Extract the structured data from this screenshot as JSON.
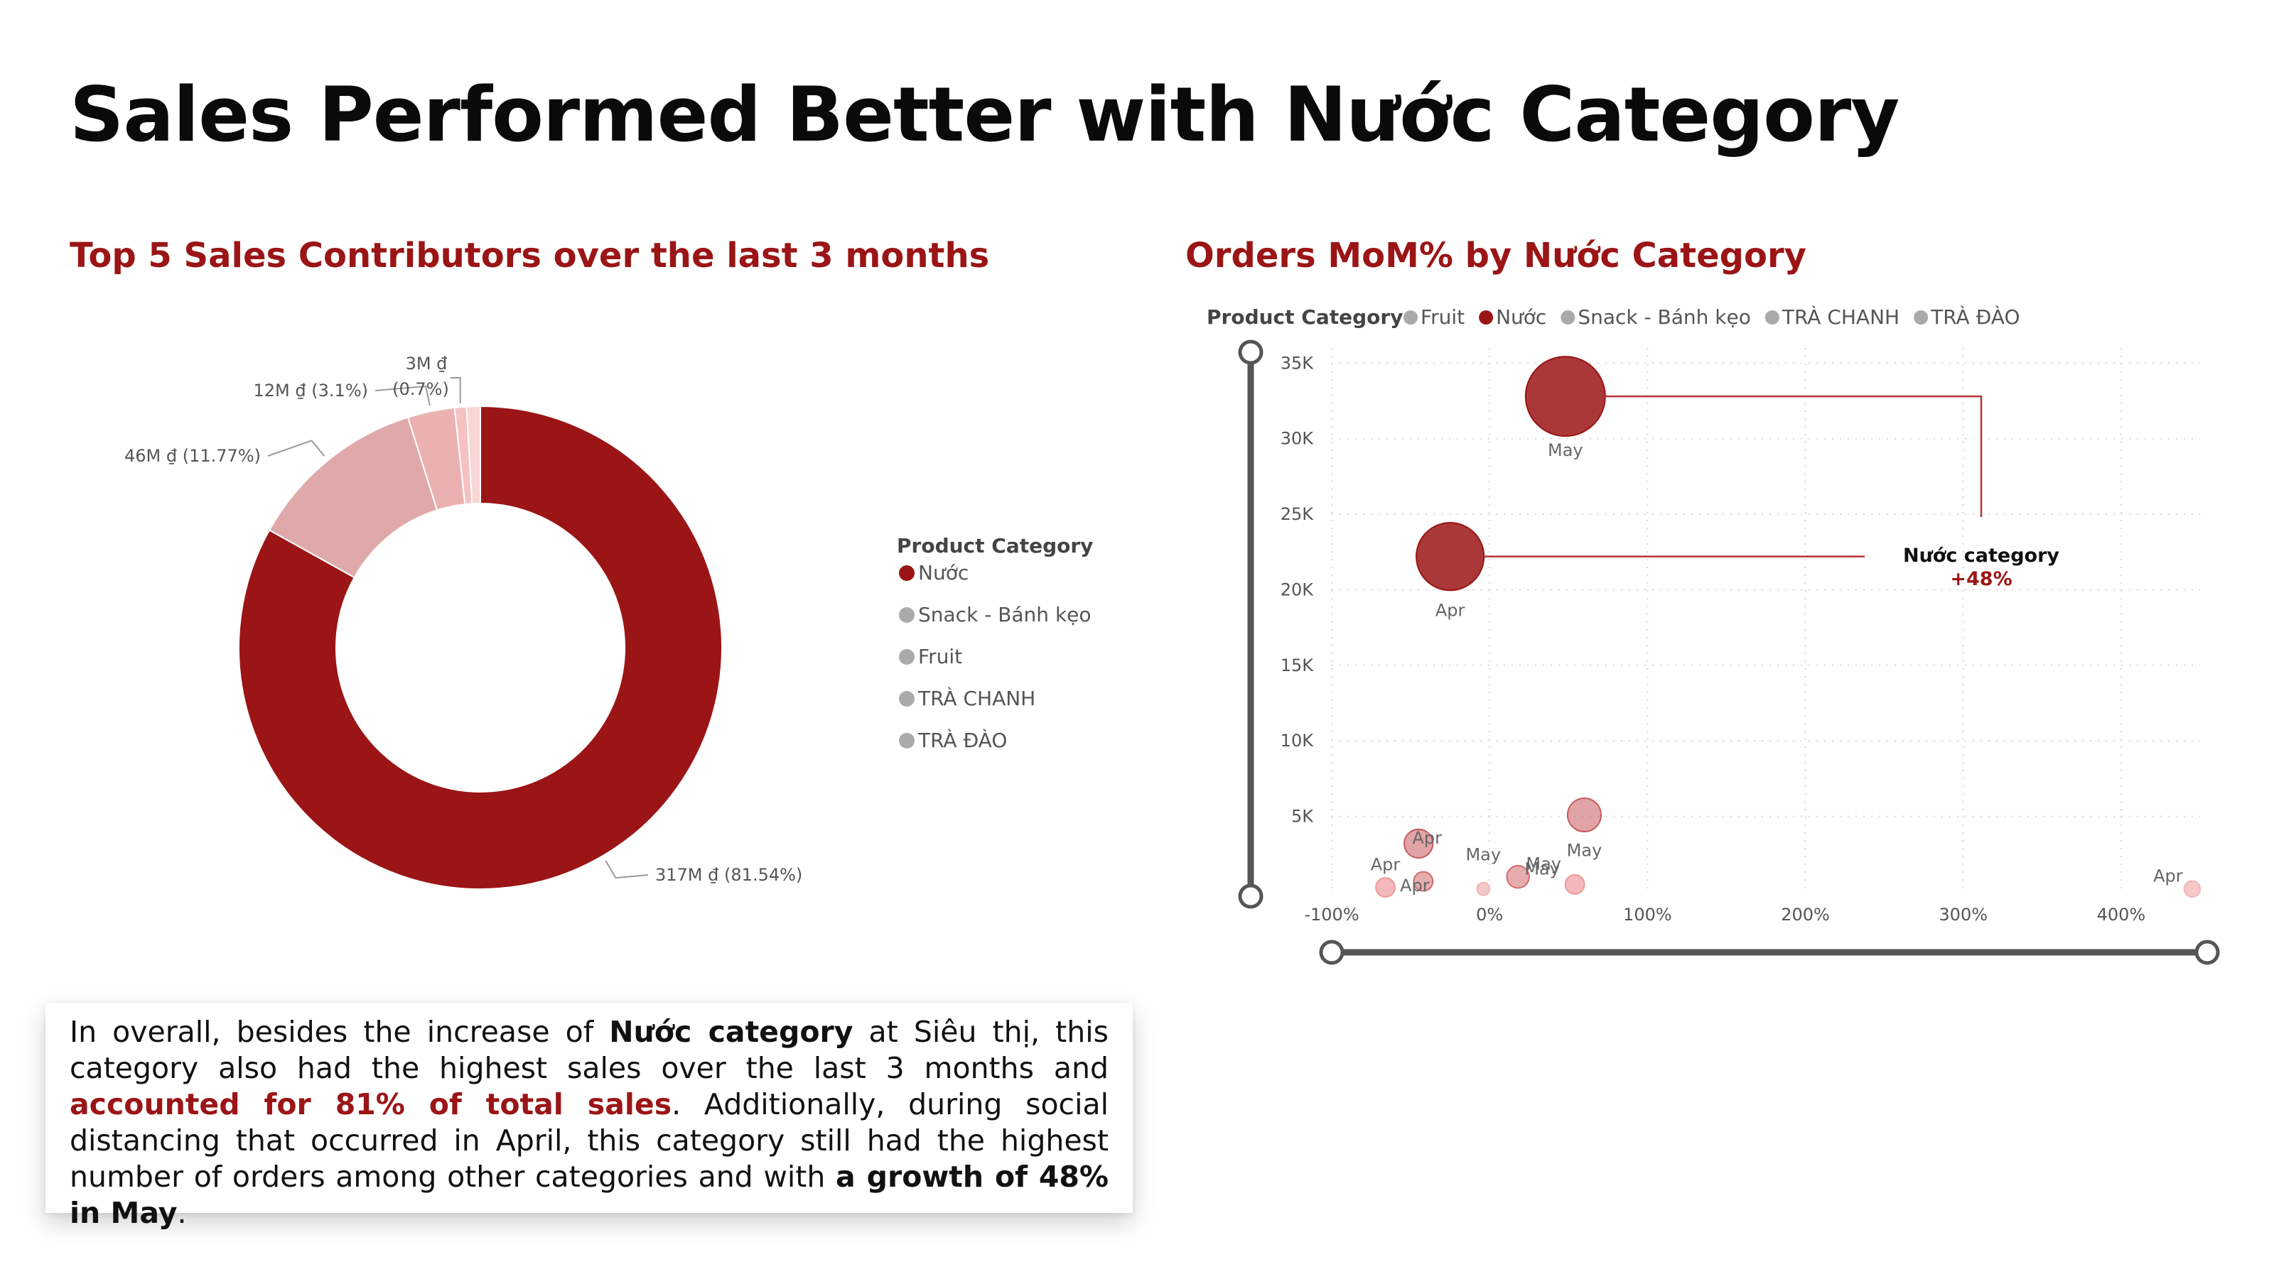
{
  "title": "Sales Performed Better with Nước Category",
  "left_title": "Top 5 Sales Contributors over the last 3 months",
  "right_title": "Orders MoM% by Nước Category",
  "colors": {
    "accent": "#9b1516",
    "donut": [
      "#9b1516",
      "#e0a9a9",
      "#ebb1b1",
      "#f6c1c1",
      "#f9d6d6"
    ],
    "legend_muted": "#aaaaaa"
  },
  "summary": {
    "p1": "In overall, besides the increase of ",
    "b1": "Nước category",
    "p2": " at Siêu thị, this category also had the highest sales over the last 3 months and ",
    "hl1": "accounted for 81% of total sales",
    "p3": ". Additionally, during social distancing that occurred in April, this category still had the highest number of orders among other categories and with ",
    "b2": "a growth of 48% in May",
    "p4": "."
  },
  "chart_data": [
    {
      "type": "pie",
      "variant": "donut",
      "title": "Top 5 Sales Contributors over the last 3 months",
      "legend_title": "Product Category",
      "legend": [
        "Nước",
        "Snack - Bánh kẹo",
        "Fruit",
        "TRÀ CHANH",
        "TRÀ ĐÀO"
      ],
      "slices": [
        {
          "name": "Nước",
          "value": 317,
          "label": "317M ₫ (81.54%)"
        },
        {
          "name": "Snack - Bánh kẹo",
          "value": 46,
          "label": "46M ₫ (11.77%)"
        },
        {
          "name": "Fruit",
          "value": 12,
          "label": "12M ₫ (3.1%)"
        },
        {
          "name": "TRÀ CHANH",
          "value": 3,
          "label": "3M ₫ (0.7%)"
        },
        {
          "name": "TRÀ ĐÀO",
          "value": 3.5,
          "label": ""
        }
      ]
    },
    {
      "type": "scatter",
      "variant": "bubble",
      "title": "Orders MoM% by Nước Category",
      "legend_title": "Product Category",
      "legend": [
        "Fruit",
        "Nước",
        "Snack - Bánh kẹo",
        "TRÀ CHANH",
        "TRÀ ĐÀO"
      ],
      "legend_highlight": "Nước",
      "xlim": [
        -100,
        450
      ],
      "ylim": [
        0,
        36000
      ],
      "x_ticks": [
        {
          "v": -100,
          "label": "-100%"
        },
        {
          "v": 0,
          "label": "0%"
        },
        {
          "v": 100,
          "label": "100%"
        },
        {
          "v": 200,
          "label": "200%"
        },
        {
          "v": 300,
          "label": "300%"
        },
        {
          "v": 400,
          "label": "400%"
        }
      ],
      "y_ticks": [
        {
          "v": 5000,
          "label": "5K"
        },
        {
          "v": 10000,
          "label": "10K"
        },
        {
          "v": 15000,
          "label": "15K"
        },
        {
          "v": 20000,
          "label": "20K"
        },
        {
          "v": 25000,
          "label": "25K"
        },
        {
          "v": 30000,
          "label": "30K"
        },
        {
          "v": 35000,
          "label": "35K"
        }
      ],
      "grid": true,
      "points": [
        {
          "series": "Nước",
          "label": "May",
          "x": 48,
          "y": 32800,
          "size": 1.0
        },
        {
          "series": "Nước",
          "label": "Apr",
          "x": -25,
          "y": 22200,
          "size": 0.85
        },
        {
          "series": "Snack - Bánh kẹo",
          "label": "May",
          "x": 60,
          "y": 5100,
          "size": 0.42
        },
        {
          "series": "Snack - Bánh kẹo",
          "label": "Apr",
          "x": -45,
          "y": 3200,
          "size": 0.36
        },
        {
          "series": "Fruit",
          "label": "May",
          "x": 18,
          "y": 1000,
          "size": 0.28
        },
        {
          "series": "Fruit",
          "label": "Apr",
          "x": -42,
          "y": 700,
          "size": 0.24
        },
        {
          "series": "TRÀ CHANH",
          "label": "May",
          "x": 54,
          "y": 500,
          "size": 0.24
        },
        {
          "series": "TRÀ CHANH",
          "label": "Apr",
          "x": -66,
          "y": 300,
          "size": 0.24
        },
        {
          "series": "TRÀ ĐÀO",
          "label": "May",
          "x": -4,
          "y": 200,
          "size": 0.16
        },
        {
          "series": "TRÀ ĐÀO",
          "label": "Apr",
          "x": 445,
          "y": 200,
          "size": 0.2
        }
      ],
      "annotation": {
        "title": "Nước category",
        "value": "+48%"
      }
    }
  ]
}
